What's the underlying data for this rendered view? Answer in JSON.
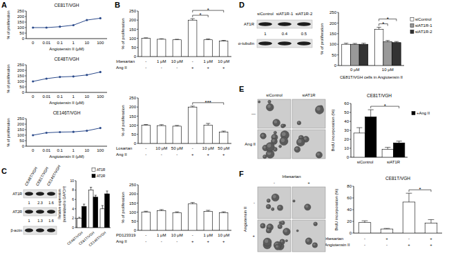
{
  "panel_labels": [
    "A",
    "B",
    "C",
    "D",
    "E",
    "F"
  ],
  "chart_data": [
    {
      "type": "line",
      "title": "CE81T/VGH",
      "categories": [
        "0",
        "0.01",
        "0.1",
        "1",
        "10",
        "100"
      ],
      "values": [
        100,
        100,
        108,
        122,
        168,
        185
      ],
      "x_label": "Angiotensin II (μM)",
      "y_label": "% of proliferation",
      "ylim": [
        0,
        250
      ],
      "yticks": [
        0,
        50,
        100,
        150,
        200,
        250
      ],
      "color": "#2b4a8b",
      "marker": "circle"
    },
    {
      "type": "line",
      "title": "CE48T/VGH",
      "categories": [
        "0",
        "0.01",
        "0.1",
        "1",
        "10",
        "100"
      ],
      "values": [
        100,
        125,
        140,
        145,
        158,
        185
      ],
      "x_label": "Angiotensin II (μM)",
      "y_label": "% of proliferation",
      "ylim": [
        0,
        250
      ],
      "yticks": [
        0,
        50,
        100,
        150,
        200,
        250
      ],
      "color": "#2b4a8b",
      "marker": "circle"
    },
    {
      "type": "line",
      "title": "CE146T/VGH",
      "categories": [
        "0",
        "0.01",
        "0.1",
        "1",
        "10",
        "100"
      ],
      "values": [
        100,
        122,
        128,
        130,
        140,
        165
      ],
      "x_label": "Angiotensin II (μM)",
      "y_label": "% of proliferation",
      "ylim": [
        0,
        250
      ],
      "yticks": [
        0,
        50,
        100,
        150,
        200,
        250
      ],
      "color": "#2b4a8b",
      "marker": "circle"
    },
    {
      "type": "bar",
      "categories": [
        null,
        null,
        null,
        null,
        null,
        null
      ],
      "x_rows": [
        {
          "label": "Irbesartan",
          "labels": [
            "-",
            "1 μM",
            "10 μM",
            "-",
            "1 μM",
            "10 μM"
          ]
        },
        {
          "label": "Ang II",
          "labels": [
            "-",
            "-",
            "-",
            "+",
            "+",
            "+"
          ]
        }
      ],
      "values": [
        100,
        95,
        92,
        200,
        92,
        85
      ],
      "errors": [
        3,
        3,
        3,
        8,
        5,
        4
      ],
      "y_label": "% of proliferation",
      "ylim": [
        0,
        250
      ],
      "yticks": [
        0,
        50,
        100,
        150,
        200,
        250
      ],
      "color": "#ffffff",
      "annotations": [
        {
          "text": "*",
          "from": 3,
          "to": 4
        },
        {
          "text": "*",
          "from": 3,
          "to": 5
        }
      ]
    },
    {
      "type": "bar",
      "categories": [
        null,
        null,
        null,
        null,
        null,
        null
      ],
      "x_rows": [
        {
          "label": "Losartan",
          "labels": [
            "-",
            "10 μM",
            "50 μM",
            "-",
            "10 μM",
            "50 μM"
          ]
        },
        {
          "label": "Ang II",
          "labels": [
            "-",
            "-",
            "-",
            "+",
            "+",
            "+"
          ]
        }
      ],
      "values": [
        100,
        98,
        95,
        200,
        100,
        62
      ],
      "errors": [
        4,
        5,
        4,
        5,
        10,
        6
      ],
      "y_label": "% of proliferation",
      "ylim": [
        0,
        250
      ],
      "yticks": [
        0,
        50,
        100,
        150,
        200,
        250
      ],
      "color": "#ffffff",
      "annotations": [
        {
          "text": "***",
          "from": 3,
          "to": 5
        }
      ]
    },
    {
      "type": "bar",
      "categories": [
        null,
        null,
        null,
        null,
        null,
        null
      ],
      "x_rows": [
        {
          "label": "PD123319",
          "labels": [
            "-",
            "1 μM",
            "10 μM",
            "-",
            "1 μM",
            "10 μM"
          ]
        },
        {
          "label": "Ang II",
          "labels": [
            "-",
            "-",
            "-",
            "+",
            "+",
            "+"
          ]
        }
      ],
      "values": [
        100,
        108,
        97,
        145,
        104,
        97
      ],
      "errors": [
        5,
        6,
        5,
        8,
        6,
        5
      ],
      "y_label": "% of proliferation",
      "ylim": [
        0,
        250
      ],
      "yticks": [
        0,
        50,
        100,
        150,
        200,
        250
      ],
      "color": "#ffffff"
    },
    {
      "type": "bar",
      "categories": [
        "CE48T/VGH",
        "CE81T/VGH",
        "CE146T/VGH"
      ],
      "series": [
        {
          "name": "AT1R",
          "color": "#ffffff",
          "values": [
            2,
            8,
            4
          ],
          "errors": [
            0.2,
            0.6,
            0.7
          ]
        },
        {
          "name": "AT2R",
          "color": "#000000",
          "values": [
            4.5,
            6.5,
            7.2
          ],
          "errors": [
            0.5,
            0.4,
            0.6
          ]
        }
      ],
      "y_label": [
        "Relative expression",
        "(normalized to GAPDH)"
      ],
      "ylim": [
        0,
        10
      ],
      "yticks": [
        0,
        2,
        4,
        6,
        8,
        10
      ],
      "legend": "top-right"
    },
    {
      "type": "bar",
      "categories": [
        "0 μM",
        "10 μM"
      ],
      "series": [
        {
          "name": "siControl",
          "color": "#ffffff",
          "values": [
            100,
            170
          ],
          "errors": [
            5,
            10
          ]
        },
        {
          "name": "siAT1R-1",
          "color": "#999999",
          "values": [
            100,
            112
          ],
          "errors": [
            4,
            6
          ]
        },
        {
          "name": "siAT1R-2",
          "color": "#333333",
          "values": [
            100,
            108
          ],
          "errors": [
            5,
            5
          ]
        }
      ],
      "x_label": "CE81T/VGH cells in Angiotensin II",
      "y_label": "% of proliferation",
      "ylim": [
        0,
        250
      ],
      "yticks": [
        0,
        50,
        100,
        150,
        200,
        250
      ],
      "legend": "right",
      "annotations": [
        {
          "text": "*",
          "from": [
            1,
            0
          ],
          "to": [
            1,
            1
          ]
        },
        {
          "text": "*",
          "from": [
            1,
            0
          ],
          "to": [
            1,
            2
          ]
        }
      ]
    },
    {
      "type": "bar",
      "title": "CE81T/VGH",
      "categories": [
        "siControl",
        "siAT1R"
      ],
      "series": [
        {
          "name": null,
          "color": "#ffffff",
          "values": [
            27,
            9
          ],
          "errors": [
            6,
            2
          ]
        },
        {
          "name": "+Ang II",
          "color": "#000000",
          "values": [
            45,
            16
          ],
          "errors": [
            8,
            2
          ]
        }
      ],
      "y_label": "BrdU incorporation (%)",
      "ylim": [
        0,
        60
      ],
      "yticks": [
        0,
        10,
        20,
        30,
        40,
        50,
        60
      ],
      "legend": "right",
      "annotations": [
        {
          "text": "*",
          "from": [
            0,
            1
          ],
          "to": [
            1,
            1
          ]
        }
      ]
    },
    {
      "type": "bar",
      "title": "CE81T/VGH",
      "categories": [
        null,
        null,
        null,
        null
      ],
      "x_rows": [
        {
          "label": "Irbesartan",
          "labels": [
            "-",
            "+",
            "-",
            "+"
          ]
        },
        {
          "label": "Angiotensin II",
          "labels": [
            "-",
            "-",
            "+",
            "+"
          ]
        }
      ],
      "values": [
        18,
        7,
        53,
        17
      ],
      "errors": [
        3,
        1,
        15,
        6
      ],
      "y_label": "BrdU incorporation (%)",
      "ylim": [
        0,
        80
      ],
      "yticks": [
        0,
        20,
        40,
        60,
        80
      ],
      "color": "#ffffff",
      "annotations": [
        {
          "text": "*",
          "from": 2,
          "to": 3
        }
      ]
    }
  ],
  "blots": [
    {
      "columns": [
        "CE48T/VGH",
        "CE81T/VGH",
        "CE146T/VGH"
      ],
      "rows": [
        {
          "label": "AT1R",
          "numbers": [
            1,
            2.3,
            1.6
          ]
        },
        {
          "label": "AT2R",
          "numbers": [
            1,
            1.3,
            1.6
          ]
        },
        {
          "label": "β-actin"
        }
      ]
    },
    {
      "columns": [
        "siControl",
        "siAT1R-1",
        "siAT1R-2"
      ],
      "rows": [
        {
          "label": "AT1R",
          "numbers": [
            1,
            0.4,
            0.5
          ]
        },
        {
          "label": "α-tubulin"
        }
      ]
    }
  ],
  "images": [
    {
      "columns": [
        "siControl",
        "siAT1R"
      ],
      "rows": [
        "—",
        "Ang II"
      ]
    },
    {
      "title": "Irbesartan",
      "columns": [
        "-",
        "+"
      ],
      "row_title": "Angiotensin II",
      "rows": [
        "-",
        "+"
      ]
    }
  ]
}
